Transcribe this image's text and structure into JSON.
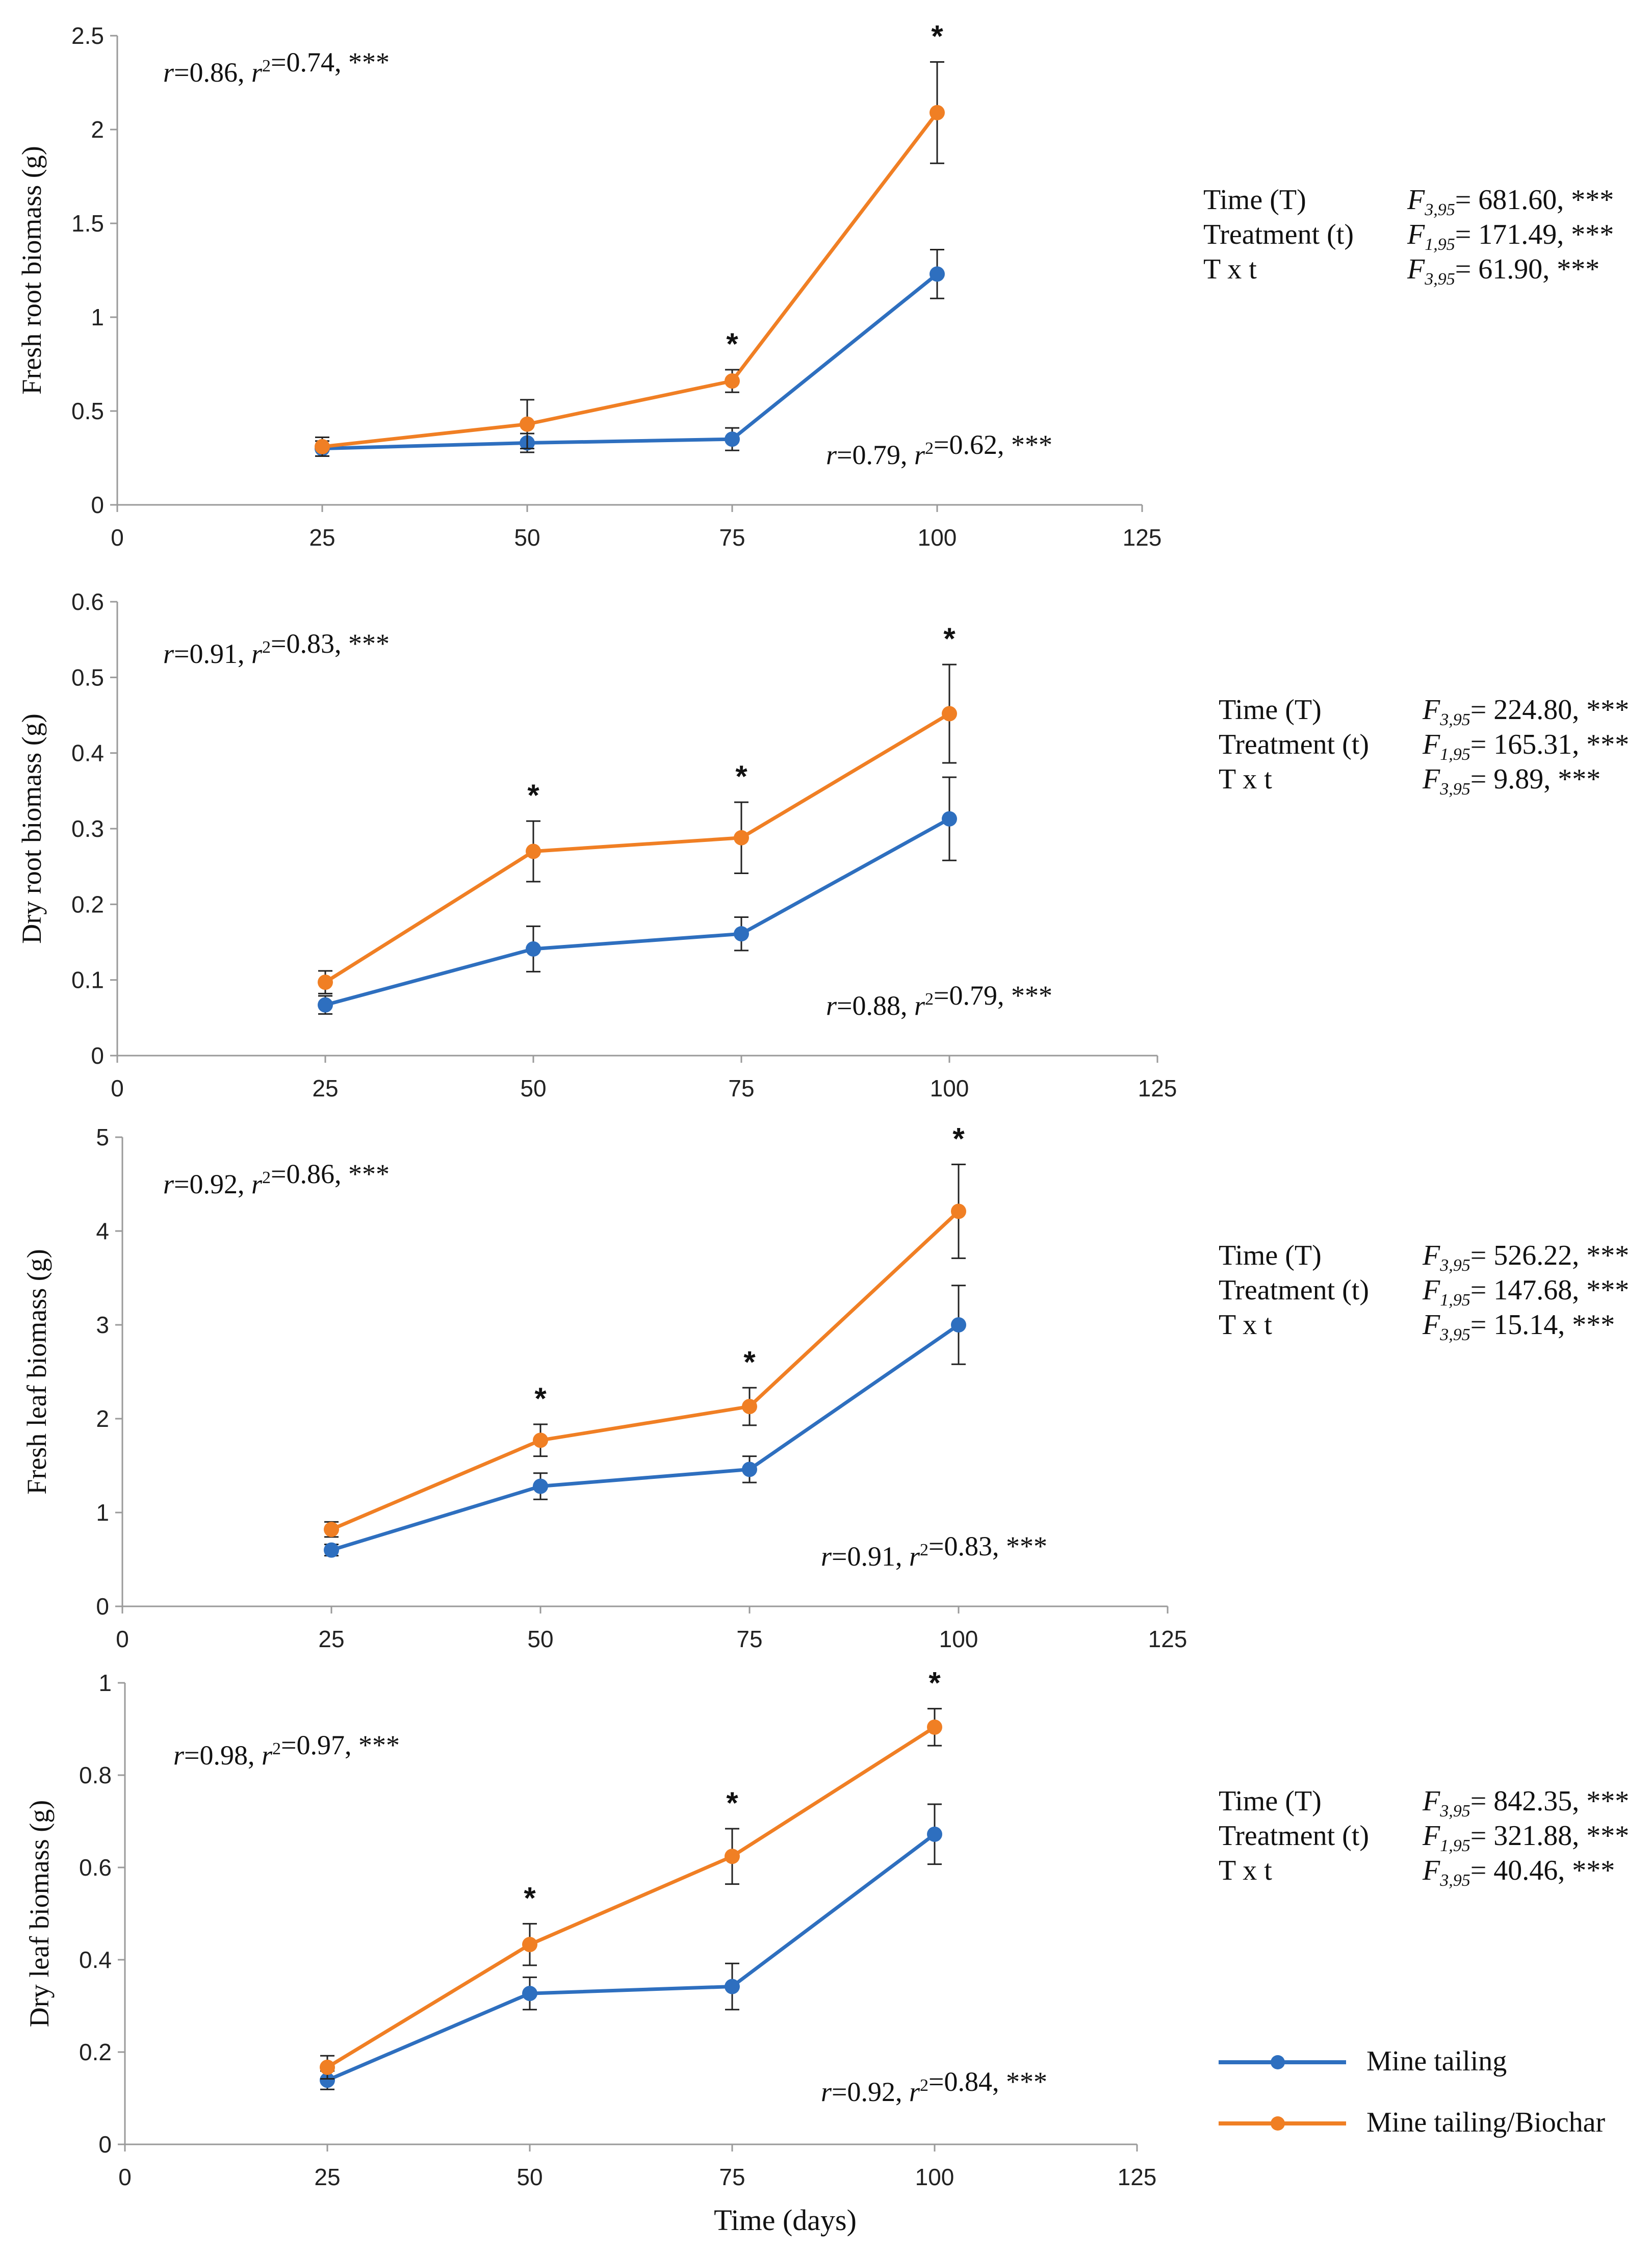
{
  "colors": {
    "mine_tailing": "#2E6FBF",
    "mine_tailing_biochar": "#F07F24",
    "axis": "#9a9a9a"
  },
  "legend": {
    "series1": "Mine tailing",
    "series2": "Mine tailing/Biochar"
  },
  "x_title": "Time (days)",
  "chart_data": [
    {
      "type": "line",
      "ylabel": "Fresh root biomass (g)",
      "x": [
        25,
        50,
        75,
        100
      ],
      "xlim": [
        0,
        125
      ],
      "xticks": [
        "0",
        "25",
        "50",
        "75",
        "100",
        "125"
      ],
      "ylim": [
        0,
        2.5
      ],
      "yticks": [
        "0",
        "0.5",
        "1",
        "1.5",
        "2",
        "2.5"
      ],
      "series": [
        {
          "name": "Mine tailing",
          "values": [
            0.3,
            0.33,
            0.35,
            1.23
          ],
          "err": [
            0.04,
            0.05,
            0.06,
            0.13
          ]
        },
        {
          "name": "Mine tailing/Biochar",
          "values": [
            0.31,
            0.43,
            0.66,
            2.09
          ],
          "err": [
            0.05,
            0.13,
            0.06,
            0.27
          ]
        }
      ],
      "significance": [
        "",
        "",
        "*",
        "*"
      ],
      "stat_top": "r=0.86, r²=0.74, ***",
      "stat_bottom": "r=0.79, r²=0.62, ***",
      "anova": [
        {
          "term": "Time (T)",
          "f": "F",
          "df": "3,95",
          "value": "= 681.60, ***"
        },
        {
          "term": "Treatment (t)",
          "f": "F",
          "df": "1,95",
          "value": "= 171.49, ***"
        },
        {
          "term": "T x t",
          "f": "F",
          "df": "3,95",
          "value": "= 61.90, ***"
        }
      ]
    },
    {
      "type": "line",
      "ylabel": "Dry root biomass (g)",
      "x": [
        25,
        50,
        75,
        100
      ],
      "xlim": [
        0,
        125
      ],
      "xticks": [
        "0",
        "25",
        "50",
        "75",
        "100",
        "125"
      ],
      "ylim": [
        0,
        0.6
      ],
      "yticks": [
        "0",
        "0.1",
        "0.2",
        "0.3",
        "0.4",
        "0.5",
        "0.6"
      ],
      "series": [
        {
          "name": "Mine tailing",
          "values": [
            0.067,
            0.141,
            0.161,
            0.313
          ],
          "err": [
            0.012,
            0.03,
            0.022,
            0.055
          ]
        },
        {
          "name": "Mine tailing/Biochar",
          "values": [
            0.097,
            0.27,
            0.288,
            0.452
          ],
          "err": [
            0.015,
            0.04,
            0.047,
            0.065
          ]
        }
      ],
      "significance": [
        "",
        "*",
        "*",
        "*"
      ],
      "stat_top": "r=0.91, r²=0.83, ***",
      "stat_bottom": "r=0.88, r²=0.79, ***",
      "anova": [
        {
          "term": "Time (T)",
          "f": "F",
          "df": "3,95",
          "value": "= 224.80, ***"
        },
        {
          "term": "Treatment (t)",
          "f": "F",
          "df": "1,95",
          "value": "= 165.31, ***"
        },
        {
          "term": "T x t",
          "f": "F",
          "df": "3,95",
          "value": "= 9.89, ***"
        }
      ]
    },
    {
      "type": "line",
      "ylabel": "Fresh leaf biomass (g)",
      "x": [
        25,
        50,
        75,
        100
      ],
      "xlim": [
        0,
        125
      ],
      "xticks": [
        "0",
        "25",
        "50",
        "75",
        "100",
        "125"
      ],
      "ylim": [
        0,
        5
      ],
      "yticks": [
        "0",
        "1",
        "2",
        "3",
        "4",
        "5"
      ],
      "series": [
        {
          "name": "Mine tailing",
          "values": [
            0.6,
            1.28,
            1.46,
            3.0
          ],
          "err": [
            0.06,
            0.14,
            0.14,
            0.42
          ]
        },
        {
          "name": "Mine tailing/Biochar",
          "values": [
            0.82,
            1.77,
            2.13,
            4.21
          ],
          "err": [
            0.08,
            0.17,
            0.2,
            0.5
          ]
        }
      ],
      "significance": [
        "",
        "*",
        "*",
        "*"
      ],
      "stat_top": "r=0.92, r²=0.86, ***",
      "stat_bottom": "r=0.91, r²=0.83, ***",
      "anova": [
        {
          "term": "Time (T)",
          "f": "F",
          "df": "3,95",
          "value": "= 526.22, ***"
        },
        {
          "term": "Treatment (t)",
          "f": "F",
          "df": "1,95",
          "value": "= 147.68, ***"
        },
        {
          "term": "T x t",
          "f": "F",
          "df": "3,95",
          "value": "= 15.14, ***"
        }
      ]
    },
    {
      "type": "line",
      "ylabel": "Dry leaf biomass (g)",
      "x": [
        25,
        50,
        75,
        100
      ],
      "xlim": [
        0,
        125
      ],
      "xticks": [
        "0",
        "25",
        "50",
        "75",
        "100",
        "125"
      ],
      "ylim": [
        0,
        1
      ],
      "yticks": [
        "0",
        "0.2",
        "0.4",
        "0.6",
        "0.8",
        "1"
      ],
      "series": [
        {
          "name": "Mine tailing",
          "values": [
            0.139,
            0.327,
            0.342,
            0.672
          ],
          "err": [
            0.02,
            0.035,
            0.05,
            0.065
          ]
        },
        {
          "name": "Mine tailing/Biochar",
          "values": [
            0.167,
            0.433,
            0.624,
            0.904
          ],
          "err": [
            0.025,
            0.045,
            0.06,
            0.04
          ]
        }
      ],
      "significance": [
        "",
        "*",
        "*",
        "*"
      ],
      "stat_top": "r=0.98, r²=0.97, ***",
      "stat_bottom": "r=0.92, r²=0.84, ***",
      "anova": [
        {
          "term": "Time (T)",
          "f": "F",
          "df": "3,95",
          "value": "= 842.35, ***"
        },
        {
          "term": "Treatment (t)",
          "f": "F",
          "df": "1,95",
          "value": "= 321.88, ***"
        },
        {
          "term": "T x t",
          "f": "F",
          "df": "3,95",
          "value": "= 40.46, ***"
        }
      ]
    }
  ]
}
